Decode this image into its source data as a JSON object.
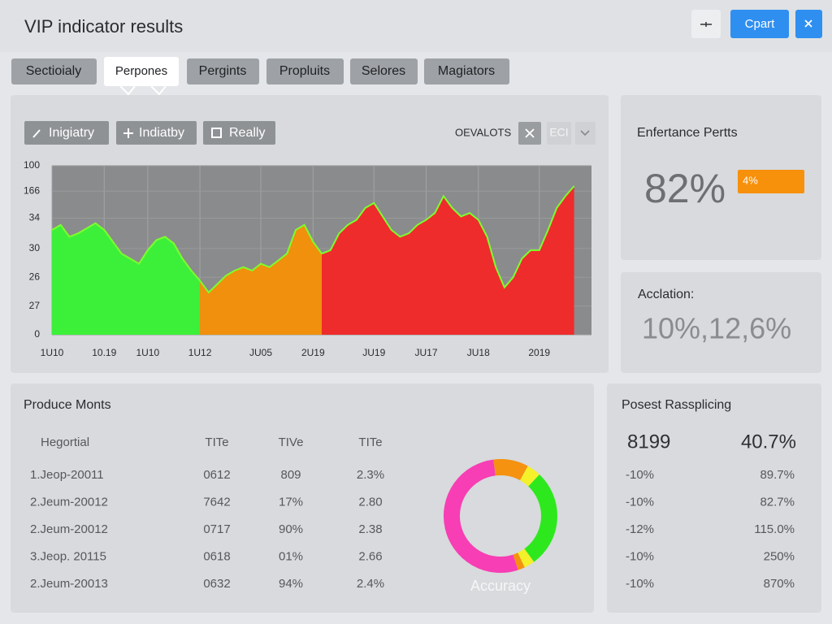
{
  "header": {
    "title": "VIP indicator results",
    "buttons": [
      "Cpart"
    ]
  },
  "tabs": [
    "Sectioialy",
    "Perpones",
    "Pergints",
    "Propluits",
    "Selores",
    "Magiators"
  ],
  "toolbar": {
    "buttons": [
      "Inigiatry",
      "Indiatby",
      "Really"
    ],
    "label": "OEVALOTS",
    "chip": "ECI"
  },
  "cards": [
    {
      "title": "Enfertance Pertts",
      "value": "82%",
      "badge": "4%"
    },
    {
      "title": "Acclation:",
      "value": "10%,12,6%"
    }
  ],
  "table": {
    "title": "Produce Monts",
    "columns": [
      "Hegortial",
      "TITe",
      "TIVe",
      "TITe"
    ],
    "rows": [
      [
        "1.Jeop-20011",
        "0612",
        "809",
        "2.3%"
      ],
      [
        "2.Jeum-20012",
        "7642",
        "17%",
        "2.80"
      ],
      [
        "2.Jeum-20012",
        "0717",
        "90%",
        "2.38"
      ],
      [
        "3.Jeop. 20115",
        "0618",
        "01%",
        "2.66"
      ],
      [
        "2.Jeum-20013",
        "0632",
        "94%",
        "2.4%"
      ]
    ]
  },
  "side_table": {
    "title": "Posest Rassplicing",
    "columns": [
      "8199",
      "40.7%"
    ],
    "rows": [
      [
        "-10%",
        "89.7%"
      ],
      [
        "-10%",
        "82.7%"
      ],
      [
        "-12%",
        "115.0%"
      ],
      [
        "-10%",
        "250%"
      ],
      [
        "-10%",
        "870%"
      ]
    ]
  },
  "chart_data": [
    {
      "type": "area",
      "grid": true,
      "line_color": "#7cff2e",
      "xlim": [
        0,
        62
      ],
      "ylim": [
        0,
        100
      ],
      "xticks": [
        {
          "value": 0,
          "label": "1U10"
        },
        {
          "value": 6,
          "label": "10.19"
        },
        {
          "value": 11,
          "label": "1U10"
        },
        {
          "value": 17,
          "label": "1U12"
        },
        {
          "value": 24,
          "label": "JU05"
        },
        {
          "value": 30,
          "label": "2U19"
        },
        {
          "value": 37,
          "label": "JU19"
        },
        {
          "value": 43,
          "label": "JU17"
        },
        {
          "value": 49,
          "label": "JU18"
        },
        {
          "value": 56,
          "label": "2019"
        }
      ],
      "yticks": [
        0,
        {
          "value": 17,
          "label": "27"
        },
        {
          "value": 34,
          "label": "26"
        },
        {
          "value": 51,
          "label": "30"
        },
        {
          "value": 69,
          "label": "34"
        },
        {
          "value": 85,
          "label": "166"
        },
        100
      ],
      "series": [
        {
          "color": "#3cf03a",
          "x": [
            0,
            1,
            2,
            3,
            4,
            5,
            6,
            7,
            8,
            9,
            10,
            11,
            12,
            13,
            14,
            15,
            16,
            17
          ],
          "values": [
            62,
            65,
            58,
            60,
            63,
            66,
            62,
            55,
            48,
            45,
            42,
            50,
            56,
            58,
            54,
            45,
            38,
            32
          ]
        },
        {
          "color": "#f0900c",
          "x": [
            17,
            18,
            19,
            20,
            21,
            22,
            23,
            24,
            25,
            26,
            27,
            28,
            29,
            30,
            31
          ],
          "values": [
            32,
            25,
            30,
            35,
            38,
            40,
            38,
            42,
            40,
            44,
            48,
            62,
            65,
            55,
            48
          ]
        },
        {
          "color": "#ee2c2c",
          "x": [
            31,
            32,
            33,
            34,
            35,
            36,
            37,
            38,
            39,
            40,
            41,
            42,
            43,
            44,
            45,
            46,
            47,
            48,
            49,
            50,
            51,
            52,
            53,
            54,
            55,
            56,
            57,
            58,
            59,
            60
          ],
          "values": [
            48,
            50,
            60,
            65,
            68,
            75,
            78,
            70,
            62,
            58,
            60,
            65,
            68,
            72,
            82,
            75,
            70,
            72,
            68,
            58,
            40,
            28,
            34,
            45,
            50,
            50,
            62,
            75,
            82,
            88
          ]
        }
      ]
    },
    {
      "type": "donut",
      "title": "Accuracy",
      "categories": [
        null,
        null,
        null,
        null,
        null,
        null
      ],
      "values": [
        10,
        4,
        28,
        3,
        2,
        53
      ],
      "colors": [
        "#f5920f",
        "#f4f02a",
        "#2ee81e",
        "#f4f02a",
        "#f5920f",
        "#f73eb4"
      ]
    }
  ]
}
